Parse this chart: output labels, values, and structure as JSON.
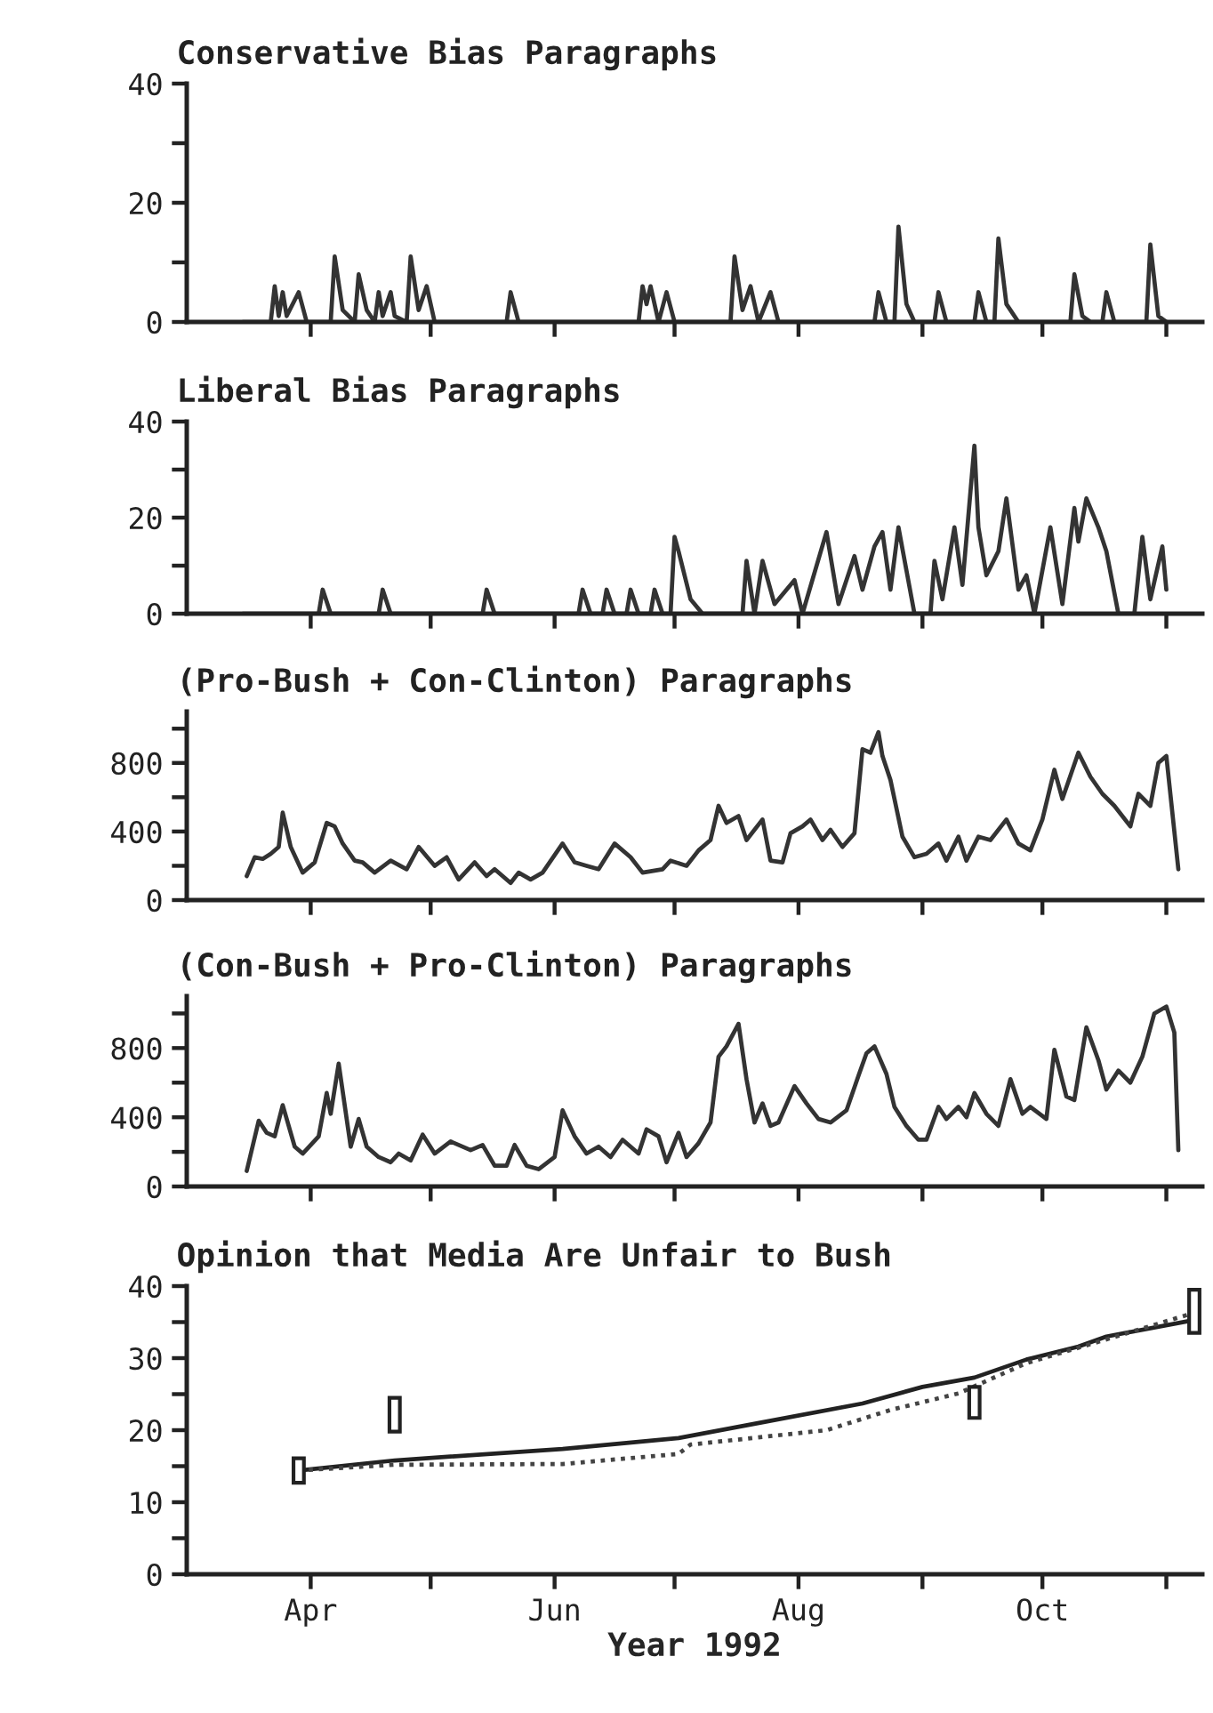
{
  "chart_data": [
    {
      "type": "line",
      "title": "Conservative Bias Paragraphs",
      "xlim": [
        "1992-03-01",
        "1992-11-10"
      ],
      "xticks": [
        {
          "value": "1992-04-01",
          "label": null
        },
        {
          "value": "1992-05-01",
          "label": null
        },
        {
          "value": "1992-06-01",
          "label": null
        },
        {
          "value": "1992-07-01",
          "label": null
        },
        {
          "value": "1992-08-01",
          "label": null
        },
        {
          "value": "1992-09-01",
          "label": null
        },
        {
          "value": "1992-10-01",
          "label": null
        },
        {
          "value": "1992-11-01",
          "label": null
        }
      ],
      "ylim": [
        0,
        40
      ],
      "yticks": [
        0,
        {
          "value": 10,
          "label": null
        },
        20,
        {
          "value": 30,
          "label": null
        },
        40
      ],
      "tick_labels": "y",
      "grid": false,
      "legend": false,
      "series": [
        {
          "color": "#333333",
          "x": [
            "1992-03-15",
            "1992-03-22",
            "1992-03-23",
            "1992-03-24",
            "1992-03-25",
            "1992-03-26",
            "1992-03-29",
            "1992-03-31",
            "1992-04-06",
            "1992-04-07",
            "1992-04-09",
            "1992-04-12",
            "1992-04-13",
            "1992-04-15",
            "1992-04-17",
            "1992-04-18",
            "1992-04-19",
            "1992-04-21",
            "1992-04-22",
            "1992-04-25",
            "1992-04-26",
            "1992-04-28",
            "1992-04-30",
            "1992-05-02",
            "1992-05-20",
            "1992-05-21",
            "1992-05-23",
            "1992-06-22",
            "1992-06-23",
            "1992-06-24",
            "1992-06-25",
            "1992-06-27",
            "1992-06-29",
            "1992-07-01",
            "1992-07-15",
            "1992-07-16",
            "1992-07-18",
            "1992-07-20",
            "1992-07-22",
            "1992-07-25",
            "1992-07-27",
            "1992-08-20",
            "1992-08-21",
            "1992-08-23",
            "1992-08-25",
            "1992-08-26",
            "1992-08-28",
            "1992-08-30",
            "1992-09-04",
            "1992-09-05",
            "1992-09-07",
            "1992-09-14",
            "1992-09-15",
            "1992-09-17",
            "1992-09-19",
            "1992-09-20",
            "1992-09-22",
            "1992-09-25",
            "1992-10-08",
            "1992-10-09",
            "1992-10-11",
            "1992-10-13",
            "1992-10-16",
            "1992-10-17",
            "1992-10-19",
            "1992-10-27",
            "1992-10-28",
            "1992-10-30",
            "1992-11-01"
          ],
          "values": [
            0,
            0,
            6,
            1,
            5,
            1,
            5,
            0,
            0,
            11,
            2,
            0,
            8,
            2,
            0,
            5,
            1,
            5,
            1,
            0,
            11,
            2,
            6,
            0,
            0,
            5,
            0,
            0,
            6,
            3,
            6,
            0,
            5,
            0,
            0,
            11,
            2,
            6,
            0,
            5,
            0,
            0,
            5,
            0,
            0,
            16,
            3,
            0,
            0,
            5,
            0,
            0,
            5,
            0,
            0,
            14,
            3,
            0,
            0,
            8,
            1,
            0,
            0,
            5,
            0,
            0,
            13,
            1,
            0
          ]
        }
      ]
    },
    {
      "type": "line",
      "title": "Liberal Bias Paragraphs",
      "xlim": [
        "1992-03-01",
        "1992-11-10"
      ],
      "xticks": [
        {
          "value": "1992-04-01",
          "label": null
        },
        {
          "value": "1992-05-01",
          "label": null
        },
        {
          "value": "1992-06-01",
          "label": null
        },
        {
          "value": "1992-07-01",
          "label": null
        },
        {
          "value": "1992-08-01",
          "label": null
        },
        {
          "value": "1992-09-01",
          "label": null
        },
        {
          "value": "1992-10-01",
          "label": null
        },
        {
          "value": "1992-11-01",
          "label": null
        }
      ],
      "ylim": [
        0,
        40
      ],
      "yticks": [
        0,
        {
          "value": 10,
          "label": null
        },
        20,
        {
          "value": 30,
          "label": null
        },
        40
      ],
      "tick_labels": "y",
      "grid": false,
      "legend": false,
      "series": [
        {
          "color": "#333333",
          "x": [
            "1992-03-15",
            "1992-04-03",
            "1992-04-04",
            "1992-04-06",
            "1992-04-18",
            "1992-04-19",
            "1992-04-21",
            "1992-05-14",
            "1992-05-15",
            "1992-05-17",
            "1992-06-07",
            "1992-06-08",
            "1992-06-10",
            "1992-06-13",
            "1992-06-14",
            "1992-06-16",
            "1992-06-19",
            "1992-06-20",
            "1992-06-22",
            "1992-06-25",
            "1992-06-26",
            "1992-06-28",
            "1992-06-30",
            "1992-07-01",
            "1992-07-02",
            "1992-07-05",
            "1992-07-08",
            "1992-07-18",
            "1992-07-19",
            "1992-07-21",
            "1992-07-23",
            "1992-07-26",
            "1992-07-31",
            "1992-08-02",
            "1992-08-08",
            "1992-08-11",
            "1992-08-15",
            "1992-08-17",
            "1992-08-20",
            "1992-08-22",
            "1992-08-24",
            "1992-08-26",
            "1992-08-30",
            "1992-09-03",
            "1992-09-04",
            "1992-09-06",
            "1992-09-09",
            "1992-09-11",
            "1992-09-14",
            "1992-09-15",
            "1992-09-17",
            "1992-09-20",
            "1992-09-22",
            "1992-09-25",
            "1992-09-27",
            "1992-09-29",
            "1992-10-03",
            "1992-10-06",
            "1992-10-09",
            "1992-10-10",
            "1992-10-12",
            "1992-10-15",
            "1992-10-17",
            "1992-10-20",
            "1992-10-24",
            "1992-10-26",
            "1992-10-28",
            "1992-10-31",
            "1992-11-01"
          ],
          "values": [
            0,
            0,
            5,
            0,
            0,
            5,
            0,
            0,
            5,
            0,
            0,
            5,
            0,
            0,
            5,
            0,
            0,
            5,
            0,
            0,
            5,
            0,
            0,
            16,
            13,
            3,
            0,
            0,
            11,
            0,
            11,
            2,
            7,
            0,
            17,
            2,
            12,
            5,
            14,
            17,
            5,
            18,
            0,
            0,
            11,
            3,
            18,
            6,
            35,
            18,
            8,
            13,
            24,
            5,
            8,
            0,
            18,
            2,
            22,
            15,
            24,
            18,
            13,
            0,
            0,
            16,
            3,
            14,
            5
          ]
        }
      ]
    },
    {
      "type": "line",
      "title": "(Pro-Bush + Con-Clinton) Paragraphs",
      "xlim": [
        "1992-03-01",
        "1992-11-10"
      ],
      "xticks": [
        {
          "value": "1992-04-01",
          "label": null
        },
        {
          "value": "1992-05-01",
          "label": null
        },
        {
          "value": "1992-06-01",
          "label": null
        },
        {
          "value": "1992-07-01",
          "label": null
        },
        {
          "value": "1992-08-01",
          "label": null
        },
        {
          "value": "1992-09-01",
          "label": null
        },
        {
          "value": "1992-10-01",
          "label": null
        },
        {
          "value": "1992-11-01",
          "label": null
        }
      ],
      "ylim": [
        0,
        1100
      ],
      "yticks": [
        0,
        {
          "value": 200,
          "label": null
        },
        400,
        {
          "value": 600,
          "label": null
        },
        800,
        {
          "value": 1000,
          "label": null
        }
      ],
      "tick_labels": "y",
      "grid": false,
      "legend": false,
      "series": [
        {
          "color": "#333333",
          "x": [
            "1992-03-16",
            "1992-03-18",
            "1992-03-20",
            "1992-03-22",
            "1992-03-24",
            "1992-03-25",
            "1992-03-27",
            "1992-03-30",
            "1992-04-02",
            "1992-04-05",
            "1992-04-07",
            "1992-04-09",
            "1992-04-12",
            "1992-04-14",
            "1992-04-17",
            "1992-04-21",
            "1992-04-25",
            "1992-04-28",
            "1992-05-02",
            "1992-05-05",
            "1992-05-08",
            "1992-05-12",
            "1992-05-15",
            "1992-05-17",
            "1992-05-21",
            "1992-05-23",
            "1992-05-26",
            "1992-05-29",
            "1992-06-03",
            "1992-06-06",
            "1992-06-09",
            "1992-06-12",
            "1992-06-16",
            "1992-06-20",
            "1992-06-23",
            "1992-06-28",
            "1992-06-30",
            "1992-07-04",
            "1992-07-07",
            "1992-07-10",
            "1992-07-12",
            "1992-07-14",
            "1992-07-17",
            "1992-07-19",
            "1992-07-23",
            "1992-07-25",
            "1992-07-28",
            "1992-07-30",
            "1992-08-02",
            "1992-08-04",
            "1992-08-07",
            "1992-08-09",
            "1992-08-12",
            "1992-08-15",
            "1992-08-17",
            "1992-08-19",
            "1992-08-21",
            "1992-08-22",
            "1992-08-24",
            "1992-08-27",
            "1992-08-30",
            "1992-09-02",
            "1992-09-05",
            "1992-09-07",
            "1992-09-10",
            "1992-09-12",
            "1992-09-15",
            "1992-09-18",
            "1992-09-22",
            "1992-09-25",
            "1992-09-28",
            "1992-10-01",
            "1992-10-04",
            "1992-10-06",
            "1992-10-10",
            "1992-10-13",
            "1992-10-16",
            "1992-10-19",
            "1992-10-23",
            "1992-10-25",
            "1992-10-28",
            "1992-10-30",
            "1992-11-01",
            "1992-11-04"
          ],
          "values": [
            140,
            250,
            240,
            270,
            310,
            510,
            310,
            160,
            220,
            450,
            430,
            330,
            230,
            220,
            160,
            230,
            180,
            310,
            200,
            250,
            120,
            220,
            140,
            180,
            100,
            160,
            120,
            160,
            330,
            220,
            200,
            180,
            330,
            250,
            160,
            180,
            230,
            200,
            290,
            350,
            550,
            450,
            490,
            350,
            470,
            230,
            220,
            390,
            430,
            470,
            350,
            410,
            310,
            390,
            880,
            860,
            980,
            840,
            700,
            370,
            250,
            270,
            330,
            230,
            370,
            230,
            370,
            350,
            470,
            330,
            290,
            470,
            760,
            590,
            860,
            720,
            620,
            550,
            430,
            620,
            550,
            800,
            840,
            180
          ]
        }
      ]
    },
    {
      "type": "line",
      "title": "(Con-Bush + Pro-Clinton) Paragraphs",
      "xlim": [
        "1992-03-01",
        "1992-11-10"
      ],
      "xticks": [
        {
          "value": "1992-04-01",
          "label": null
        },
        {
          "value": "1992-05-01",
          "label": null
        },
        {
          "value": "1992-06-01",
          "label": null
        },
        {
          "value": "1992-07-01",
          "label": null
        },
        {
          "value": "1992-08-01",
          "label": null
        },
        {
          "value": "1992-09-01",
          "label": null
        },
        {
          "value": "1992-10-01",
          "label": null
        },
        {
          "value": "1992-11-01",
          "label": null
        }
      ],
      "ylim": [
        0,
        1100
      ],
      "yticks": [
        0,
        {
          "value": 200,
          "label": null
        },
        400,
        {
          "value": 600,
          "label": null
        },
        800,
        {
          "value": 1000,
          "label": null
        }
      ],
      "tick_labels": "y",
      "grid": false,
      "legend": false,
      "series": [
        {
          "color": "#333333",
          "x": [
            "1992-03-16",
            "1992-03-19",
            "1992-03-21",
            "1992-03-23",
            "1992-03-25",
            "1992-03-28",
            "1992-03-30",
            "1992-04-03",
            "1992-04-05",
            "1992-04-06",
            "1992-04-08",
            "1992-04-11",
            "1992-04-13",
            "1992-04-15",
            "1992-04-18",
            "1992-04-21",
            "1992-04-23",
            "1992-04-26",
            "1992-04-29",
            "1992-05-02",
            "1992-05-06",
            "1992-05-11",
            "1992-05-14",
            "1992-05-17",
            "1992-05-20",
            "1992-05-22",
            "1992-05-25",
            "1992-05-28",
            "1992-06-01",
            "1992-06-03",
            "1992-06-06",
            "1992-06-09",
            "1992-06-12",
            "1992-06-15",
            "1992-06-18",
            "1992-06-22",
            "1992-06-24",
            "1992-06-27",
            "1992-06-29",
            "1992-07-02",
            "1992-07-04",
            "1992-07-07",
            "1992-07-10",
            "1992-07-12",
            "1992-07-14",
            "1992-07-17",
            "1992-07-19",
            "1992-07-21",
            "1992-07-23",
            "1992-07-25",
            "1992-07-27",
            "1992-07-31",
            "1992-08-03",
            "1992-08-06",
            "1992-08-09",
            "1992-08-13",
            "1992-08-16",
            "1992-08-18",
            "1992-08-20",
            "1992-08-23",
            "1992-08-25",
            "1992-08-28",
            "1992-08-31",
            "1992-09-02",
            "1992-09-05",
            "1992-09-07",
            "1992-09-10",
            "1992-09-12",
            "1992-09-14",
            "1992-09-17",
            "1992-09-20",
            "1992-09-23",
            "1992-09-26",
            "1992-09-28",
            "1992-10-02",
            "1992-10-04",
            "1992-10-07",
            "1992-10-09",
            "1992-10-12",
            "1992-10-15",
            "1992-10-17",
            "1992-10-20",
            "1992-10-23",
            "1992-10-26",
            "1992-10-29",
            "1992-11-01",
            "1992-11-03",
            "1992-11-04"
          ],
          "values": [
            90,
            380,
            310,
            290,
            470,
            230,
            190,
            290,
            540,
            420,
            710,
            230,
            390,
            230,
            170,
            140,
            190,
            150,
            300,
            190,
            260,
            210,
            240,
            120,
            120,
            240,
            120,
            100,
            170,
            440,
            290,
            190,
            230,
            170,
            270,
            190,
            330,
            290,
            140,
            310,
            170,
            250,
            370,
            750,
            810,
            940,
            620,
            370,
            480,
            350,
            370,
            580,
            480,
            390,
            370,
            440,
            640,
            770,
            810,
            650,
            460,
            350,
            270,
            270,
            460,
            390,
            460,
            400,
            540,
            420,
            350,
            620,
            420,
            460,
            390,
            790,
            520,
            500,
            920,
            730,
            560,
            670,
            600,
            750,
            1000,
            1040,
            890,
            210
          ]
        }
      ]
    },
    {
      "type": "line",
      "title": "Opinion that Media Are Unfair to Bush",
      "xlabel": "Year 1992",
      "xlim": [
        "1992-03-01",
        "1992-11-10"
      ],
      "xticks": [
        {
          "value": "1992-04-01",
          "label": "Apr"
        },
        {
          "value": "1992-05-01",
          "label": null
        },
        {
          "value": "1992-06-01",
          "label": "Jun"
        },
        {
          "value": "1992-07-01",
          "label": null
        },
        {
          "value": "1992-08-01",
          "label": "Aug"
        },
        {
          "value": "1992-09-01",
          "label": null
        },
        {
          "value": "1992-10-01",
          "label": "Oct"
        },
        {
          "value": "1992-11-01",
          "label": null
        }
      ],
      "ylim": [
        0,
        40
      ],
      "yticks": [
        0,
        {
          "value": 5,
          "label": null
        },
        10,
        {
          "value": 15,
          "label": null
        },
        20,
        {
          "value": 25,
          "label": null
        },
        30,
        {
          "value": 35,
          "label": null
        },
        40
      ],
      "grid": false,
      "legend": false,
      "series": [
        {
          "color": "#222222",
          "line_style": "solid",
          "x": [
            "1992-03-29",
            "1992-04-22",
            "1992-06-03",
            "1992-07-02",
            "1992-07-23",
            "1992-08-17",
            "1992-09-01",
            "1992-09-14",
            "1992-09-27",
            "1992-10-10",
            "1992-10-17",
            "1992-11-08"
          ],
          "values": [
            14.4,
            15.8,
            17.4,
            18.9,
            21.1,
            23.7,
            26,
            27.3,
            29.8,
            31.6,
            33,
            35.3
          ]
        },
        {
          "color": "#444444",
          "line_style": "dotted",
          "x": [
            "1992-03-29",
            "1992-04-22",
            "1992-06-03",
            "1992-07-02",
            "1992-07-05",
            "1992-08-08",
            "1992-08-24",
            "1992-09-10",
            "1992-09-27",
            "1992-10-17",
            "1992-11-08"
          ],
          "values": [
            14.4,
            15.2,
            15.3,
            16.7,
            18,
            20,
            22.8,
            25.1,
            29.3,
            32.6,
            36.3
          ]
        },
        {
          "type": "bar",
          "color": "#222222",
          "x": [
            "1992-03-29",
            "1992-04-22",
            "1992-09-14",
            "1992-11-08"
          ],
          "base": [
            12.7,
            19.8,
            21.7,
            33.5
          ],
          "values": [
            3.4,
            4.7,
            4.3,
            6
          ]
        }
      ]
    }
  ]
}
